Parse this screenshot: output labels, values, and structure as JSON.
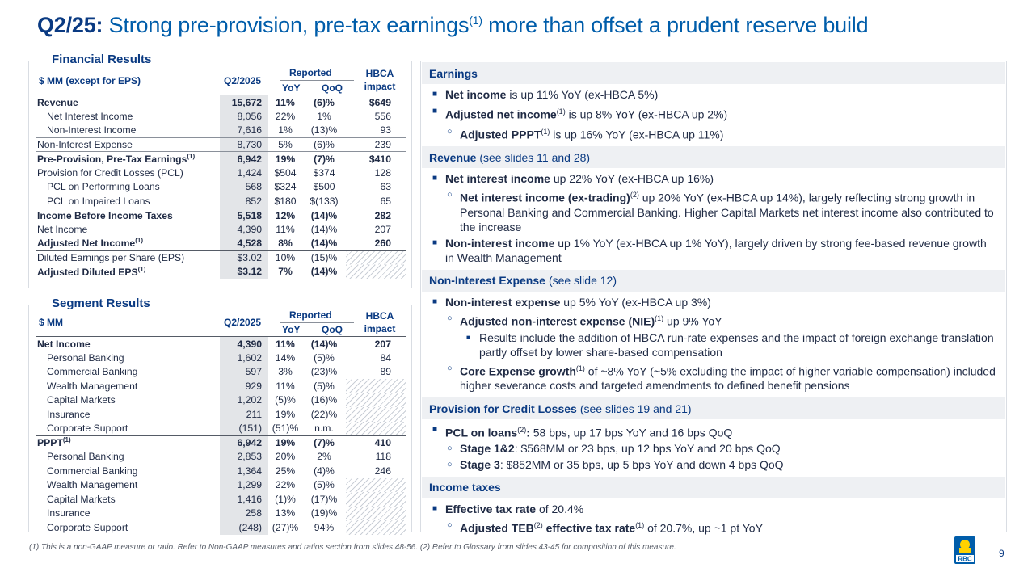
{
  "title": {
    "prefix": "Q2/25:",
    "main": "Strong pre-provision, pre-tax earnings",
    "sup": "(1)",
    "suffix": " more than offset a prudent reserve build"
  },
  "financial": {
    "panel_title": "Financial Results",
    "h_label": "$ MM (except for EPS)",
    "h_q": "Q2/2025",
    "h_reported": "Reported",
    "h_yoy": "YoY",
    "h_qoq": "QoQ",
    "h_hbca": "HBCA impact",
    "rows": [
      {
        "label": "Revenue",
        "q": "15,672",
        "yoy": "11%",
        "qoq": "(6)%",
        "h": "$649"
      },
      {
        "label": "Net Interest Income",
        "q": "8,056",
        "yoy": "22%",
        "qoq": "1%",
        "h": "556"
      },
      {
        "label": "Non-Interest Income",
        "q": "7,616",
        "yoy": "1%",
        "qoq": "(13)%",
        "h": "93"
      },
      {
        "label": "Non-Interest Expense",
        "q": "8,730",
        "yoy": "5%",
        "qoq": "(6)%",
        "h": "239"
      },
      {
        "label": "Pre-Provision, Pre-Tax Earnings",
        "sup": "(1)",
        "q": "6,942",
        "yoy": "19%",
        "qoq": "(7)%",
        "h": "$410"
      },
      {
        "label": "Provision for Credit Losses (PCL)",
        "q": "1,424",
        "yoy": "$504",
        "qoq": "$374",
        "h": "128"
      },
      {
        "label": "PCL on Performing Loans",
        "q": "568",
        "yoy": "$324",
        "qoq": "$500",
        "h": "63"
      },
      {
        "label": "PCL on Impaired Loans",
        "q": "852",
        "yoy": "$180",
        "qoq": "$(133)",
        "h": "65"
      },
      {
        "label": "Income Before Income Taxes",
        "q": "5,518",
        "yoy": "12%",
        "qoq": "(14)%",
        "h": "282"
      },
      {
        "label": "Net Income",
        "q": "4,390",
        "yoy": "11%",
        "qoq": "(14)%",
        "h": "207"
      },
      {
        "label": "Adjusted Net Income",
        "sup": "(1)",
        "q": "4,528",
        "yoy": "8%",
        "qoq": "(14)%",
        "h": "260"
      },
      {
        "label": "Diluted Earnings per Share (EPS)",
        "q": "$3.02",
        "yoy": "10%",
        "qoq": "(15)%",
        "h": ""
      },
      {
        "label": "Adjusted Diluted EPS",
        "sup": "(1)",
        "q": "$3.12",
        "yoy": "7%",
        "qoq": "(14)%",
        "h": ""
      }
    ]
  },
  "segment": {
    "panel_title": "Segment Results",
    "h_label": "$ MM",
    "h_q": "Q2/2025",
    "h_reported": "Reported",
    "h_yoy": "YoY",
    "h_qoq": "QoQ",
    "h_hbca": "HBCA impact",
    "rows": [
      {
        "label": "Net Income",
        "q": "4,390",
        "yoy": "11%",
        "qoq": "(14)%",
        "h": "207"
      },
      {
        "label": "Personal Banking",
        "q": "1,602",
        "yoy": "14%",
        "qoq": "(5)%",
        "h": "84"
      },
      {
        "label": "Commercial Banking",
        "q": "597",
        "yoy": "3%",
        "qoq": "(23)%",
        "h": "89"
      },
      {
        "label": "Wealth Management",
        "q": "929",
        "yoy": "11%",
        "qoq": "(5)%",
        "h": ""
      },
      {
        "label": "Capital Markets",
        "q": "1,202",
        "yoy": "(5)%",
        "qoq": "(16)%",
        "h": ""
      },
      {
        "label": "Insurance",
        "q": "211",
        "yoy": "19%",
        "qoq": "(22)%",
        "h": ""
      },
      {
        "label": "Corporate Support",
        "q": "(151)",
        "yoy": "(51)%",
        "qoq": "n.m.",
        "h": ""
      },
      {
        "label": "PPPT",
        "sup": "(1)",
        "q": "6,942",
        "yoy": "19%",
        "qoq": "(7)%",
        "h": "410"
      },
      {
        "label": "Personal Banking",
        "q": "2,853",
        "yoy": "20%",
        "qoq": "2%",
        "h": "118"
      },
      {
        "label": "Commercial Banking",
        "q": "1,364",
        "yoy": "25%",
        "qoq": "(4)%",
        "h": "246"
      },
      {
        "label": "Wealth Management",
        "q": "1,299",
        "yoy": "22%",
        "qoq": "(5)%",
        "h": ""
      },
      {
        "label": "Capital Markets",
        "q": "1,416",
        "yoy": "(1)%",
        "qoq": "(17)%",
        "h": ""
      },
      {
        "label": "Insurance",
        "q": "258",
        "yoy": "13%",
        "qoq": "(19)%",
        "h": ""
      },
      {
        "label": "Corporate Support",
        "q": "(248)",
        "yoy": "(27)%",
        "qoq": "94%",
        "h": ""
      }
    ]
  },
  "commentary": {
    "earnings": {
      "header": "Earnings",
      "b1": {
        "bold": "Net income",
        "rest": " is up 11% YoY (ex-HBCA 5%)"
      },
      "b2": {
        "bold": "Adjusted net income",
        "sup": "(1)",
        "rest": " is up 8% YoY (ex-HBCA up 2%)"
      },
      "b3": {
        "bold": "Adjusted PPPT",
        "sup": "(1)",
        "rest": " is up 16% YoY (ex-HBCA up 11%)"
      }
    },
    "revenue": {
      "header_bold": "Revenue",
      "header_rest": "(see slides 11 and 28)",
      "b1": {
        "bold": "Net interest income",
        "rest": " up 22% YoY (ex-HBCA up 16%)"
      },
      "b2": {
        "bold": "Net interest income (ex-trading)",
        "sup": "(2)",
        "rest": " up 20% YoY (ex-HBCA up 14%), largely reflecting strong growth in Personal Banking and Commercial Banking. Higher Capital Markets net interest income also contributed to the increase"
      },
      "b3": {
        "bold": "Non-interest income",
        "rest": " up 1% YoY (ex-HBCA up 1% YoY), largely driven by strong fee-based revenue growth in Wealth Management"
      }
    },
    "nie": {
      "header_bold": "Non-Interest Expense",
      "header_rest": "(see slide 12)",
      "b1": {
        "bold": "Non-interest expense",
        "rest": " up 5% YoY (ex-HBCA up 3%)"
      },
      "b2": {
        "bold": "Adjusted non-interest expense (NIE)",
        "sup": "(1)",
        "rest": " up 9% YoY"
      },
      "b3": {
        "rest": "Results include the addition of HBCA run-rate expenses and the impact of foreign exchange translation partly offset by lower share-based compensation"
      },
      "b4": {
        "bold": "Core Expense growth",
        "sup": "(1)",
        "rest": " of ~8% YoY (~5% excluding the impact of higher variable compensation) included higher severance costs and targeted amendments to defined benefit pensions"
      }
    },
    "pcl": {
      "header_bold": "Provision for Credit Losses",
      "header_rest": "(see slides 19 and 21)",
      "b1": {
        "bold": "PCL on loans",
        "sup": "(2)",
        "bold2": ":",
        "rest": " 58 bps, up 17 bps YoY and 16 bps QoQ"
      },
      "b2": {
        "bold": "Stage 1&2",
        "rest": ": $568MM or 23 bps, up 12 bps YoY and 20 bps QoQ"
      },
      "b3": {
        "bold": "Stage 3",
        "rest": ": $852MM or 35 bps, up 5 bps YoY and down 4 bps QoQ"
      }
    },
    "tax": {
      "header": "Income taxes",
      "b1": {
        "bold": "Effective tax rate",
        "rest": " of 20.4%"
      },
      "b2": {
        "bold": "Adjusted TEB",
        "sup": "(2)",
        "bold2": " effective tax rate",
        "sup2": "(1)",
        "rest": " of 20.7%, up ~1 pt YoY"
      }
    }
  },
  "footnote": "(1) This is a non-GAAP measure or ratio. Refer to Non-GAAP measures and ratios section from slides 48-56. (2) Refer to Glossary from slides 43-45 for composition of this measure.",
  "logo_text": "RBC",
  "page_number": "9",
  "colors": {
    "navy": "#0a3a82",
    "blue": "#005daa",
    "shade": "#e3e5e8",
    "section_bg": "#eef0f3",
    "gold": "#ffd200"
  }
}
